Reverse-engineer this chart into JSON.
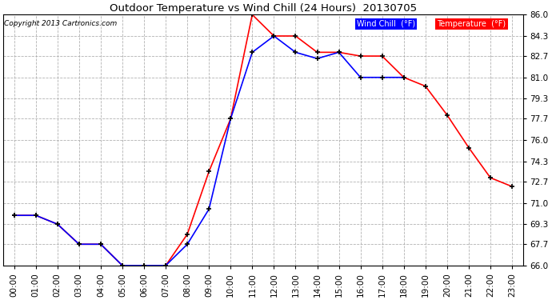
{
  "title": "Outdoor Temperature vs Wind Chill (24 Hours)  20130705",
  "copyright": "Copyright 2013 Cartronics.com",
  "hours": [
    "00:00",
    "01:00",
    "02:00",
    "03:00",
    "04:00",
    "05:00",
    "06:00",
    "07:00",
    "08:00",
    "09:00",
    "10:00",
    "11:00",
    "12:00",
    "13:00",
    "14:00",
    "15:00",
    "16:00",
    "17:00",
    "18:00",
    "19:00",
    "20:00",
    "21:00",
    "22:00",
    "23:00"
  ],
  "temperature": [
    70.0,
    70.0,
    69.3,
    67.7,
    67.7,
    66.0,
    66.0,
    66.0,
    68.5,
    73.5,
    77.7,
    86.0,
    84.3,
    84.3,
    83.0,
    83.0,
    82.7,
    82.7,
    81.0,
    80.3,
    78.0,
    75.4,
    73.0,
    72.3
  ],
  "wind_chill": [
    70.0,
    70.0,
    69.3,
    67.7,
    67.7,
    66.0,
    66.0,
    66.0,
    67.7,
    70.5,
    77.7,
    83.0,
    84.3,
    83.0,
    82.5,
    83.0,
    81.0,
    81.0,
    81.0,
    null,
    null,
    null,
    null,
    null
  ],
  "temp_color": "#ff0000",
  "wind_color": "#0000ff",
  "bg_color": "#ffffff",
  "grid_color": "#aaaaaa",
  "ylim_min": 66.0,
  "ylim_max": 86.0,
  "yticks": [
    66.0,
    67.7,
    69.3,
    71.0,
    72.7,
    74.3,
    76.0,
    77.7,
    79.3,
    81.0,
    82.7,
    84.3,
    86.0
  ],
  "legend_wind_color": "#0000ff",
  "legend_temp_color": "#ff0000",
  "legend_wind_text": "Wind Chill  (°F)",
  "legend_temp_text": "Temperature  (°F)"
}
